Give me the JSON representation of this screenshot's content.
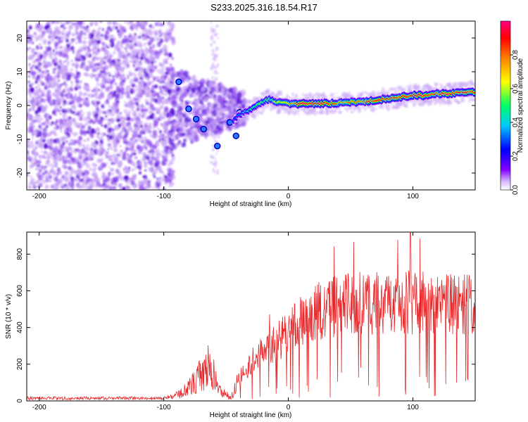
{
  "title": "S233.2025.316.18.54.R17",
  "colors": {
    "snr_line": "#e8282a",
    "scatter_light": "#c9a6f5",
    "scatter_mid": "#9a5cf0",
    "scatter_dark": "#5a10d8"
  },
  "chart_data": [
    {
      "type": "heatmap",
      "name": "spectrogram",
      "xlabel": "Height of straight line (km)",
      "ylabel": "Frequency (Hz)",
      "xlim": [
        -210,
        150
      ],
      "ylim": [
        -25,
        25
      ],
      "xticks": [
        -200,
        -100,
        0,
        100
      ],
      "xtick_labels": [
        "-200",
        "-100",
        "0",
        "100"
      ],
      "yticks": [
        20,
        10,
        0,
        -10,
        -20
      ],
      "ytick_labels": [
        "20",
        "10",
        "0",
        "-10",
        "-20"
      ],
      "ridge": {
        "x": [
          -45,
          -40,
          -35,
          -30,
          -25,
          -20,
          -15,
          -10,
          -5,
          0,
          10,
          20,
          30,
          40,
          50,
          60,
          70,
          80,
          90,
          100,
          110,
          120,
          130,
          140,
          150
        ],
        "y": [
          -5,
          -3,
          -2,
          -1,
          0,
          1,
          2,
          1,
          1,
          0.5,
          0.5,
          0.5,
          0.6,
          0.7,
          1,
          1,
          1.5,
          2,
          2.5,
          3,
          3,
          3.5,
          3.5,
          4,
          4
        ],
        "amplitude": [
          0.25,
          0.3,
          0.35,
          0.45,
          0.5,
          0.55,
          0.5,
          0.6,
          0.65,
          0.7,
          0.9,
          0.95,
          0.85,
          0.8,
          0.75,
          0.8,
          0.85,
          0.9,
          0.85,
          0.88,
          0.9,
          0.85,
          0.9,
          0.88,
          0.85
        ]
      },
      "colorbar": {
        "label": "Normalized spectral amplitude",
        "range": [
          0,
          1
        ],
        "ticks": [
          0.0,
          0.2,
          0.4,
          0.6,
          0.8
        ],
        "tick_labels": [
          "0.0",
          "0.2",
          "0.4",
          "0.6",
          "0.8"
        ],
        "colors": [
          "#ffffff",
          "#d8b8ff",
          "#7f00ff",
          "#0000ff",
          "#00c8ff",
          "#00ff64",
          "#ffff00",
          "#ff8000",
          "#ff0000",
          "#ff0080"
        ]
      }
    },
    {
      "type": "line",
      "name": "snr",
      "xlabel": "Height of straight line (km)",
      "ylabel": "SNR (10 * v/v)",
      "xlim": [
        -210,
        150
      ],
      "ylim": [
        0,
        920
      ],
      "xticks": [
        -200,
        -100,
        0,
        100
      ],
      "xtick_labels": [
        "-200",
        "-100",
        "0",
        "100"
      ],
      "yticks": [
        0,
        200,
        400,
        600,
        800
      ],
      "ytick_labels": [
        "0",
        "200",
        "400",
        "600",
        "800"
      ],
      "envelope": {
        "x": [
          -210,
          -100,
          -90,
          -80,
          -70,
          -65,
          -60,
          -55,
          -50,
          -45,
          -40,
          -35,
          -30,
          -25,
          -20,
          -15,
          -10,
          -5,
          0,
          10,
          20,
          30,
          40,
          50,
          60,
          70,
          80,
          90,
          100,
          110,
          120,
          130,
          140,
          150
        ],
        "y": [
          20,
          20,
          40,
          100,
          200,
          260,
          200,
          80,
          50,
          40,
          150,
          200,
          250,
          300,
          330,
          350,
          380,
          420,
          460,
          520,
          580,
          610,
          630,
          640,
          650,
          650,
          655,
          650,
          650,
          660,
          650,
          650,
          640,
          640
        ]
      }
    }
  ]
}
